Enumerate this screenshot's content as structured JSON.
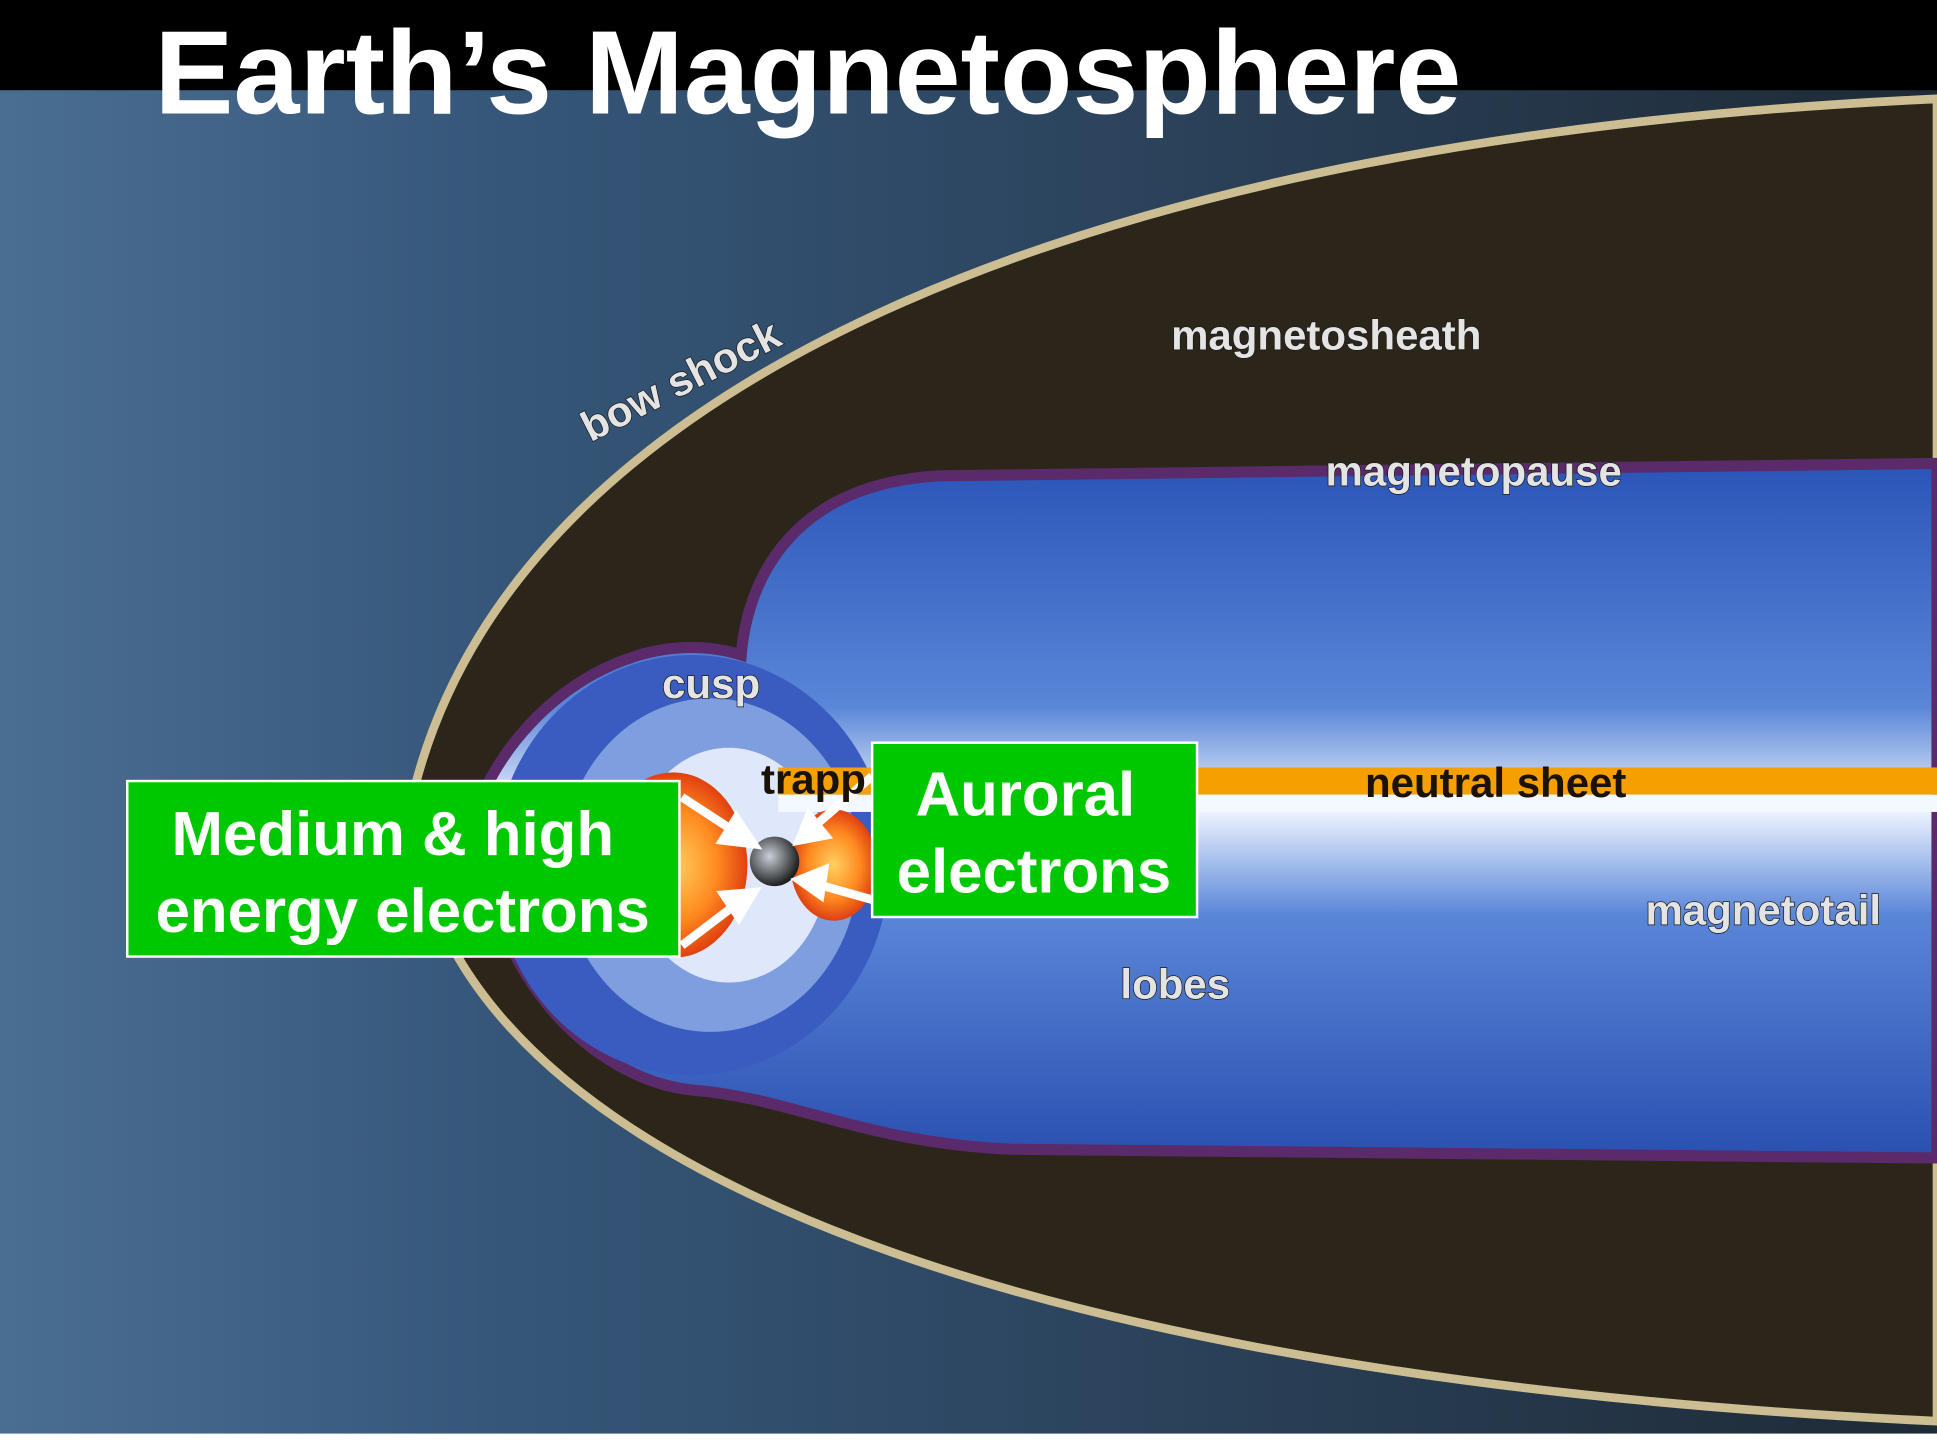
{
  "title": "Earth’s Magnetosphere",
  "labels": {
    "bow_shock": "bow shock",
    "magnetosheath": "magnetosheath",
    "magnetopause": "magnetopause",
    "cusp": "cusp",
    "trapped": "trapp",
    "neutral_sheet": "neutral sheet",
    "magnetotail": "magnetotail",
    "lobes": "lobes"
  },
  "callouts": [
    {
      "lines": [
        "Medium & high",
        "energy electrons"
      ]
    },
    {
      "lines": [
        "Auroral",
        "electrons"
      ]
    }
  ]
}
